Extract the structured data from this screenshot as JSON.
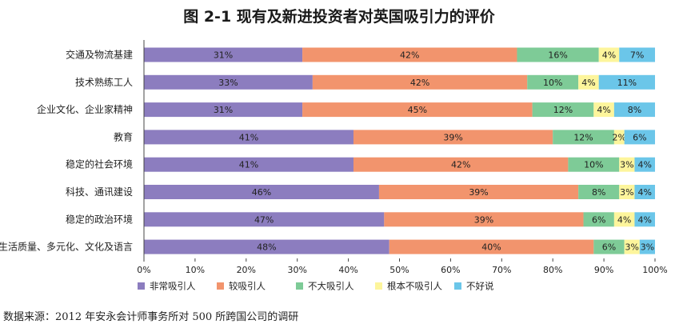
{
  "chart_data": {
    "type": "bar",
    "orientation": "horizontal",
    "stacked": true,
    "title": "图 2-1 现有及新进投资者对英国吸引力的评价",
    "categories": [
      "交通及物流基建",
      "技术熟练工人",
      "企业文化、企业家精神",
      "教育",
      "稳定的社会环境",
      "科技、通讯建设",
      "稳定的政治环境",
      "生活质量、多元化、文化及语言"
    ],
    "series": [
      {
        "name": "非常吸引人",
        "color": "#8c7dbf",
        "values": [
          31,
          33,
          31,
          41,
          41,
          46,
          47,
          48
        ],
        "labels": [
          "31%",
          "33%",
          "31%",
          "41%",
          "41%",
          "46%",
          "47%",
          "48%"
        ]
      },
      {
        "name": "较吸引人",
        "color": "#f2946d",
        "values": [
          42,
          42,
          45,
          39,
          42,
          39,
          39,
          40
        ],
        "labels": [
          "42%",
          "42%",
          "45%",
          "39%",
          "42%",
          "39%",
          "39%",
          "40%"
        ]
      },
      {
        "name": "不大吸引人",
        "color": "#7ecb97",
        "values": [
          16,
          10,
          12,
          12,
          10,
          8,
          6,
          6
        ],
        "labels": [
          "16%",
          "10%",
          "12%",
          "12%",
          "10%",
          "8%",
          "6%",
          "6%"
        ]
      },
      {
        "name": "根本不吸引人",
        "color": "#fdf59c",
        "values": [
          4,
          4,
          4,
          2,
          3,
          3,
          4,
          3
        ],
        "labels": [
          "4%",
          "4%",
          "4%",
          "2%",
          "3%",
          "3%",
          "4%",
          "3%"
        ]
      },
      {
        "name": "不好说",
        "color": "#6bc6e9",
        "values": [
          7,
          11,
          8,
          6,
          4,
          4,
          4,
          3
        ],
        "labels": [
          "7%",
          "11%",
          "8%",
          "6%",
          "4%",
          "4%",
          "4%",
          "3%"
        ]
      }
    ],
    "xlim": [
      0,
      100
    ],
    "xticks": [
      "0%",
      "10%",
      "20%",
      "30%",
      "40%",
      "50%",
      "60%",
      "70%",
      "80%",
      "90%",
      "100%"
    ],
    "legend_position": "bottom",
    "grid": false
  },
  "source": "数据来源：2012 年安永会计师事务所对 500 所跨国公司的调研"
}
